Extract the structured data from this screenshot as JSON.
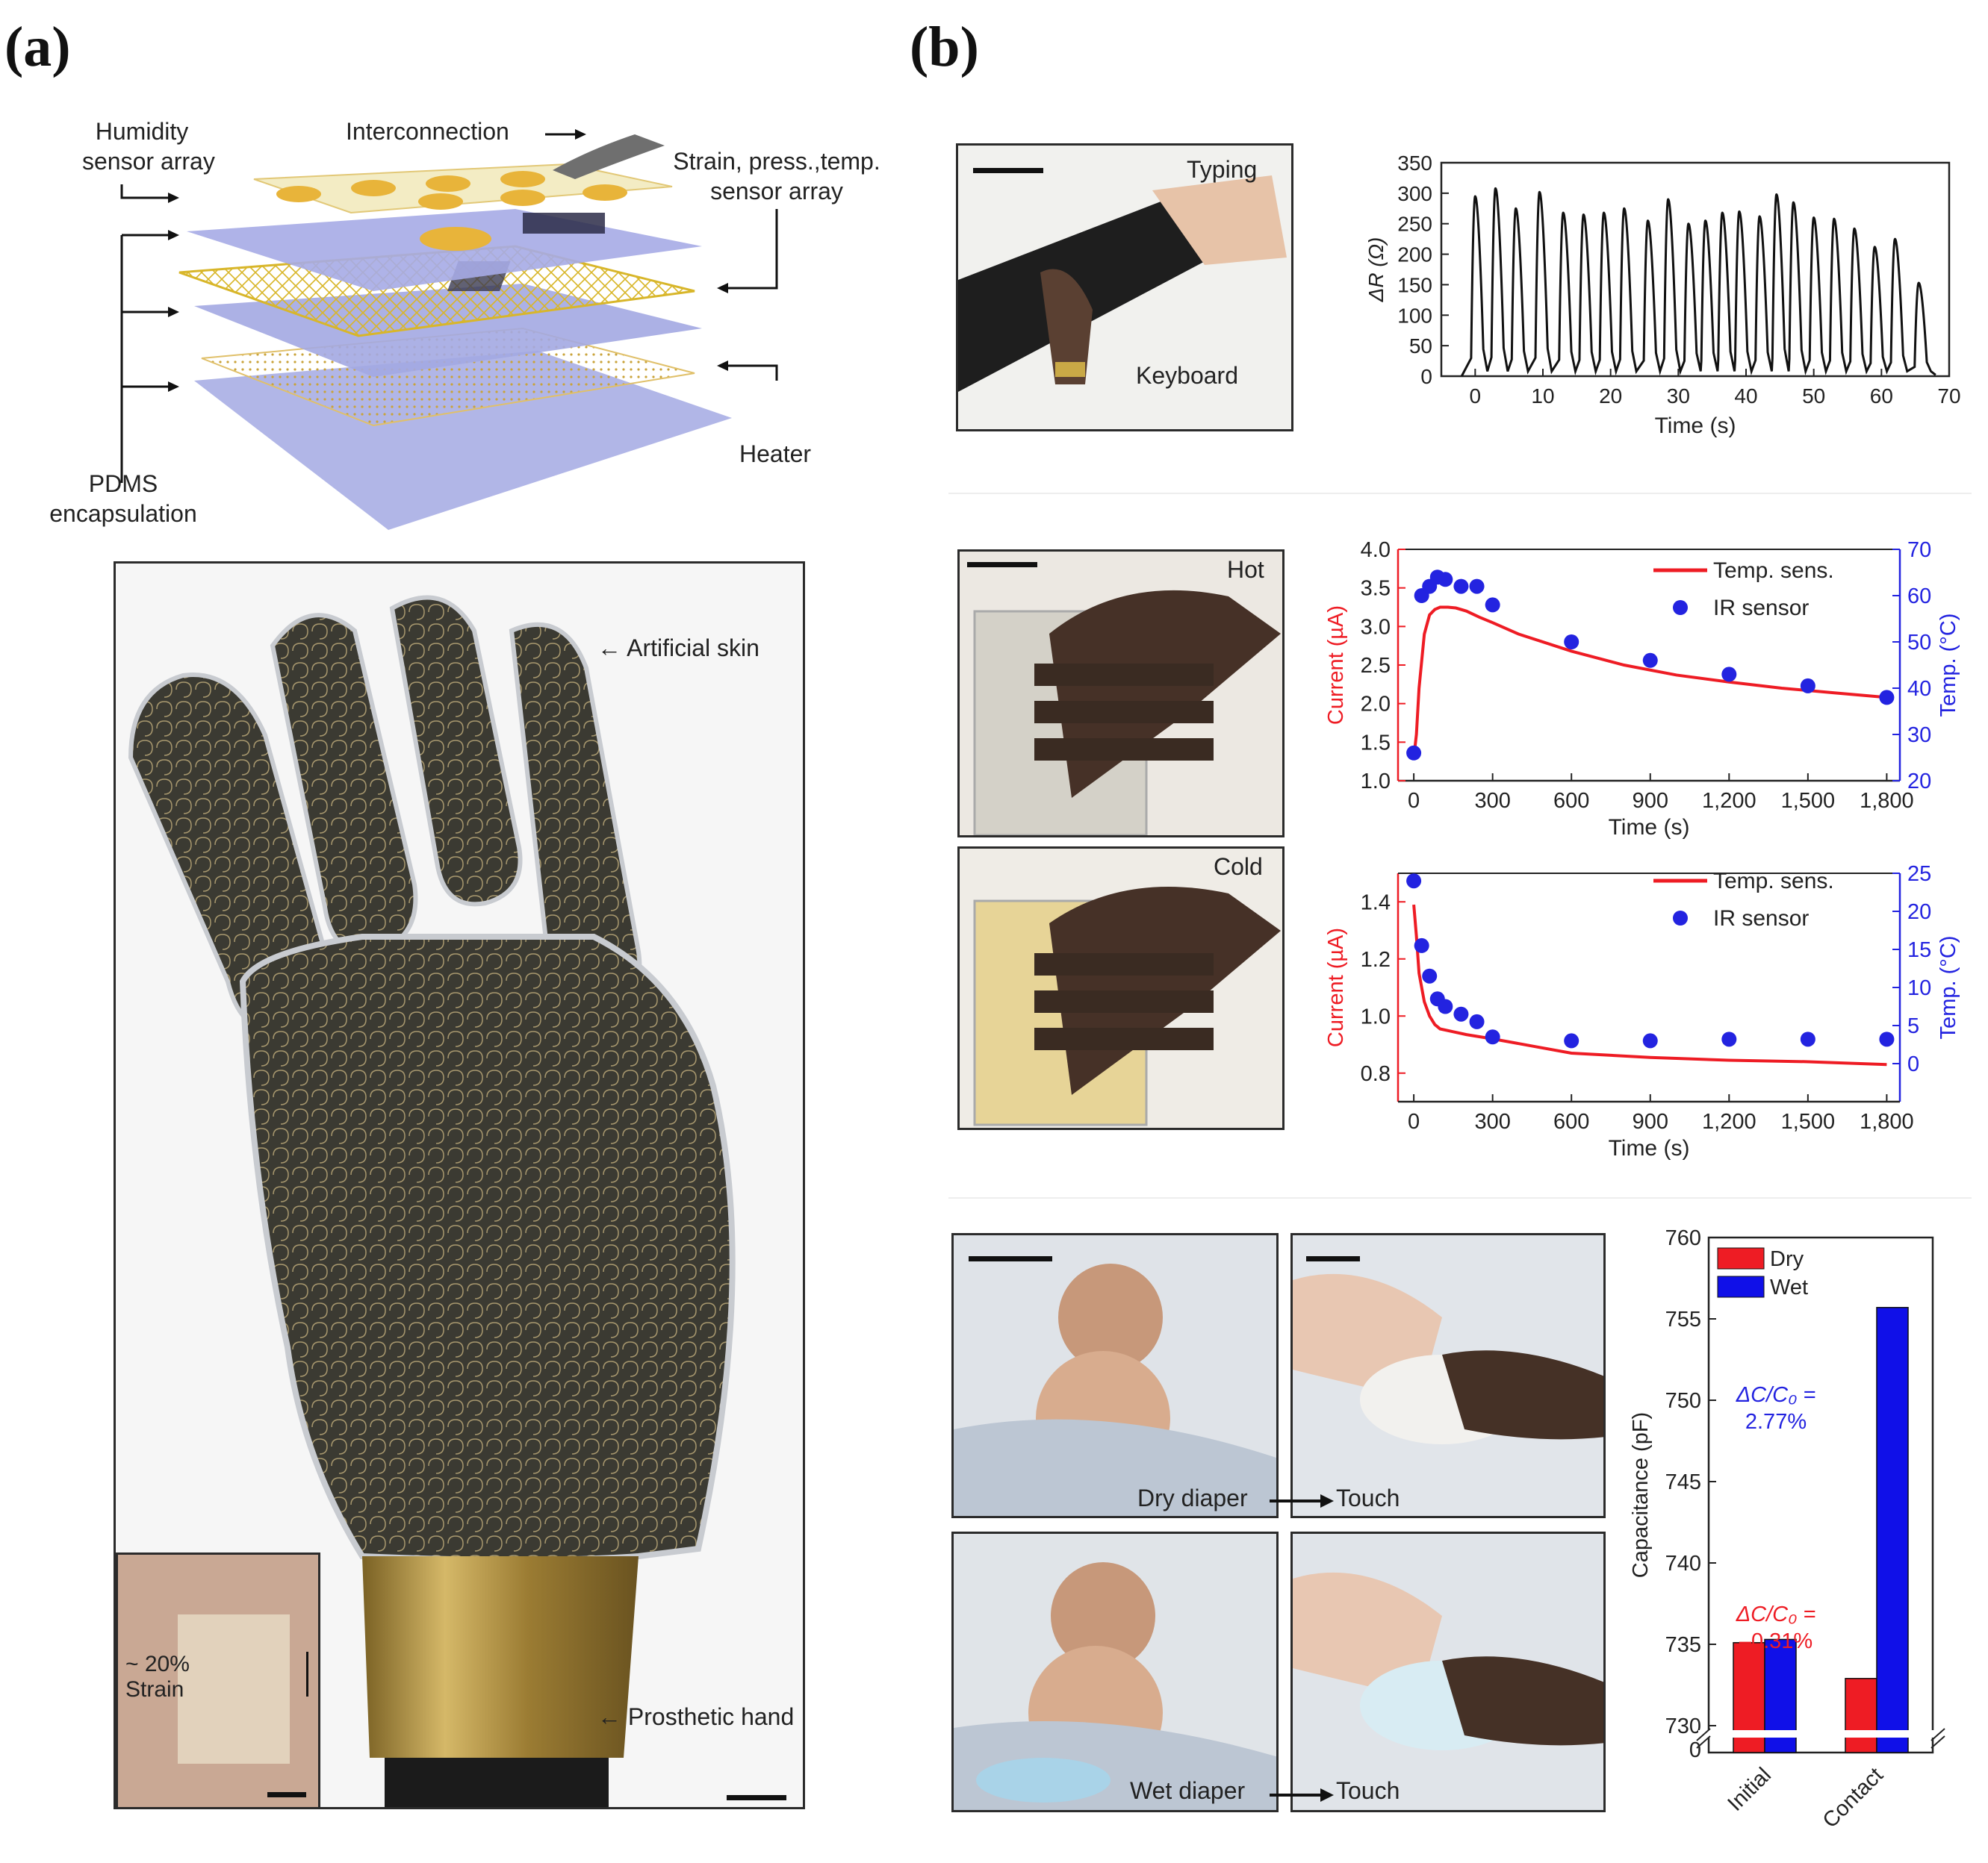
{
  "panels": {
    "a": "(a)",
    "b": "(b)"
  },
  "layers_diagram": {
    "humidity": "Humidity sensor array",
    "humidity_l1": "Humidity",
    "humidity_l2": "sensor array",
    "interconnection": "Interconnection",
    "strain_l1": "Strain, press.,temp.",
    "strain_l2": "sensor array",
    "pdms_l1": "PDMS",
    "pdms_l2": "encapsulation",
    "heater": "Heater"
  },
  "hand_photo": {
    "artificial_skin": "Artificial skin",
    "prosthetic_hand": "Prosthetic hand",
    "inset_l1": "~ 20%",
    "inset_l2": "Strain"
  },
  "typing_photo": {
    "typing": "Typing",
    "keyboard": "Keyboard"
  },
  "hot_photo": {
    "label": "Hot"
  },
  "cold_photo": {
    "label": "Cold"
  },
  "diaper_photos": {
    "dry_diaper": "Dry diaper",
    "wet_diaper": "Wet diaper",
    "touch_top": "Touch",
    "touch_bottom": "Touch"
  },
  "colors": {
    "red": "#ee1c24",
    "blue": "#2323e0",
    "black": "#111111"
  },
  "chart_data": [
    {
      "id": "resistance",
      "type": "line",
      "xlabel": "Time (s)",
      "ylabel": "ΔR (Ω)",
      "xlim": [
        -5,
        70
      ],
      "ylim": [
        0,
        350
      ],
      "xticks": [
        0,
        10,
        20,
        30,
        40,
        50,
        60,
        70
      ],
      "yticks": [
        0,
        50,
        100,
        150,
        200,
        250,
        300,
        350
      ],
      "peaks": [
        {
          "t": 0,
          "v": 295
        },
        {
          "t": 3,
          "v": 308
        },
        {
          "t": 6,
          "v": 275
        },
        {
          "t": 9.5,
          "v": 302
        },
        {
          "t": 13,
          "v": 268
        },
        {
          "t": 16,
          "v": 265
        },
        {
          "t": 19,
          "v": 268
        },
        {
          "t": 22,
          "v": 275
        },
        {
          "t": 25.5,
          "v": 255
        },
        {
          "t": 28.5,
          "v": 290
        },
        {
          "t": 31.5,
          "v": 250
        },
        {
          "t": 34,
          "v": 255
        },
        {
          "t": 36.5,
          "v": 268
        },
        {
          "t": 39,
          "v": 270
        },
        {
          "t": 42,
          "v": 262
        },
        {
          "t": 44.5,
          "v": 298
        },
        {
          "t": 47,
          "v": 285
        },
        {
          "t": 50,
          "v": 260
        },
        {
          "t": 53,
          "v": 258
        },
        {
          "t": 56,
          "v": 242
        },
        {
          "t": 59,
          "v": 212
        },
        {
          "t": 62,
          "v": 225
        },
        {
          "t": 65.5,
          "v": 153
        }
      ]
    },
    {
      "id": "hot",
      "type": "line",
      "xlabel": "Time (s)",
      "ylabel": "Current (µA)",
      "ylabel_right": "Temp. (°C)",
      "xlim": [
        -60,
        1850
      ],
      "ylim": [
        1.0,
        4.0
      ],
      "ylim_right": [
        20,
        70
      ],
      "xticks": [
        0,
        300,
        600,
        900,
        1200,
        1500,
        1800
      ],
      "xticklabels": [
        "0",
        "300",
        "600",
        "900",
        "1,200",
        "1,500",
        "1,800"
      ],
      "yticks": [
        1.0,
        1.5,
        2.0,
        2.5,
        3.0,
        3.5,
        4.0
      ],
      "yticklabels": [
        "1.0",
        "1.5",
        "2.0",
        "2.5",
        "3.0",
        "3.5",
        "4.0"
      ],
      "yticks_right": [
        20,
        30,
        40,
        50,
        60,
        70
      ],
      "series": [
        {
          "name": "Temp. sens.",
          "color": "#ee1c24",
          "x": [
            0,
            10,
            20,
            40,
            60,
            80,
            100,
            130,
            160,
            200,
            250,
            300,
            400,
            600,
            800,
            1000,
            1200,
            1400,
            1600,
            1800
          ],
          "y": [
            1.3,
            1.6,
            2.2,
            2.9,
            3.15,
            3.22,
            3.25,
            3.25,
            3.24,
            3.2,
            3.12,
            3.05,
            2.9,
            2.68,
            2.5,
            2.37,
            2.28,
            2.2,
            2.14,
            2.08
          ]
        },
        {
          "name": "IR sensor",
          "color": "#2323e0",
          "axis": "right",
          "x": [
            0,
            30,
            60,
            90,
            120,
            180,
            240,
            300,
            600,
            900,
            1200,
            1500,
            1800
          ],
          "y": [
            26,
            60,
            62,
            64,
            63.5,
            62,
            62,
            58,
            50,
            46,
            43,
            40.5,
            38
          ]
        }
      ]
    },
    {
      "id": "cold",
      "type": "line",
      "xlabel": "Time (s)",
      "ylabel": "Current (µA)",
      "ylabel_right": "Temp. (°C)",
      "xlim": [
        -60,
        1850
      ],
      "ylim": [
        0.7,
        1.5
      ],
      "ylim_right": [
        -5,
        25
      ],
      "xticks": [
        0,
        300,
        600,
        900,
        1200,
        1500,
        1800
      ],
      "xticklabels": [
        "0",
        "300",
        "600",
        "900",
        "1,200",
        "1,500",
        "1,800"
      ],
      "yticks": [
        0.8,
        1.0,
        1.2,
        1.4
      ],
      "yticklabels": [
        "0.8",
        "1.0",
        "1.2",
        "1.4"
      ],
      "yticks_right": [
        0,
        5,
        10,
        15,
        20,
        25
      ],
      "series": [
        {
          "name": "Temp. sens.",
          "color": "#ee1c24",
          "x": [
            0,
            10,
            20,
            40,
            60,
            80,
            100,
            150,
            200,
            300,
            450,
            600,
            900,
            1200,
            1500,
            1800
          ],
          "y": [
            1.39,
            1.28,
            1.15,
            1.05,
            1.0,
            0.97,
            0.955,
            0.945,
            0.935,
            0.92,
            0.895,
            0.87,
            0.855,
            0.845,
            0.84,
            0.83
          ]
        },
        {
          "name": "IR sensor",
          "color": "#2323e0",
          "axis": "right",
          "x": [
            0,
            30,
            60,
            90,
            120,
            180,
            240,
            300,
            600,
            900,
            1200,
            1500,
            1800
          ],
          "y": [
            24,
            15.5,
            11.5,
            8.5,
            7.5,
            6.5,
            5.5,
            3.5,
            3,
            3,
            3.2,
            3.2,
            3.2
          ]
        }
      ]
    },
    {
      "id": "capacitance",
      "type": "bar",
      "ylabel": "Capacitance (pF)",
      "categories": [
        "Initial",
        "Contact"
      ],
      "ylim": [
        730,
        760
      ],
      "yticks": [
        730,
        735,
        740,
        745,
        750,
        755,
        760
      ],
      "axis_break_label": "0",
      "series": [
        {
          "name": "Dry",
          "color": "#ee1c24",
          "values": [
            735.1,
            732.9
          ]
        },
        {
          "name": "Wet",
          "color": "#1010e8",
          "values": [
            735.3,
            755.7
          ]
        }
      ],
      "annotations": [
        {
          "text": "ΔC/C₀ =",
          "value": "2.77%",
          "color": "#2323e0"
        },
        {
          "text": "ΔC/C₀ =",
          "value": "–0.31%",
          "color": "#ee1c24"
        }
      ]
    }
  ]
}
